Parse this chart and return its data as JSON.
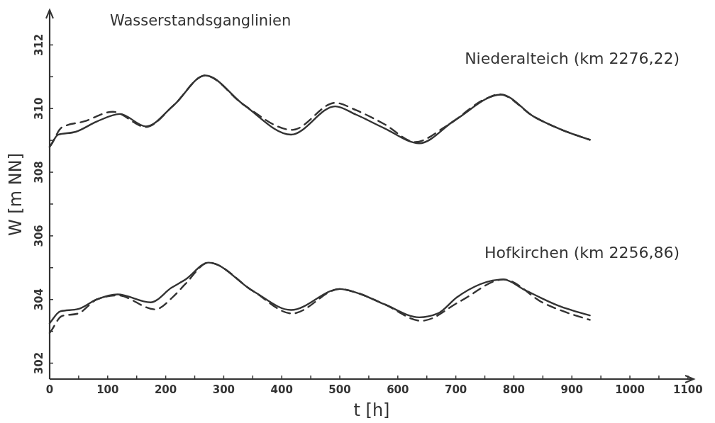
{
  "chart_data": {
    "type": "line",
    "title": "Wasserstandsganglinien",
    "xlabel": "t [h]",
    "ylabel": "W [m NN]",
    "annotations": [
      "Niederalteich (km 2276,22)",
      "Hofkirchen (km 2256,86)"
    ],
    "xlim": [
      0,
      1110
    ],
    "ylim": [
      301.5,
      313.1
    ],
    "xticks": [
      0,
      {
        "value": 50,
        "label": null
      },
      100,
      {
        "value": 150,
        "label": null
      },
      200,
      {
        "value": 250,
        "label": null
      },
      300,
      {
        "value": 350,
        "label": null
      },
      400,
      {
        "value": 450,
        "label": null
      },
      500,
      {
        "value": 550,
        "label": null
      },
      600,
      {
        "value": 650,
        "label": null
      },
      700,
      {
        "value": 750,
        "label": null
      },
      800,
      {
        "value": 850,
        "label": null
      },
      900,
      {
        "value": 950,
        "label": null
      },
      1000,
      {
        "value": 1050,
        "label": null
      },
      1100
    ],
    "yticks": [
      302,
      {
        "value": 303,
        "label": null
      },
      304,
      {
        "value": 305,
        "label": null
      },
      306,
      {
        "value": 307,
        "label": null
      },
      308,
      {
        "value": 309,
        "label": null
      },
      310,
      {
        "value": 311,
        "label": null
      },
      312
    ],
    "marker": "none",
    "series": [
      {
        "color": "#333333",
        "line_style": "solid",
        "x": [
          0,
          2,
          14.5,
          45,
          81,
          121,
          166,
          214,
          268,
          335,
          416,
          492,
          528,
          577,
          637,
          698,
          778,
          835,
          883,
          931
        ],
        "values": [
          308.8,
          308.85,
          309.18,
          309.27,
          309.59,
          309.83,
          309.44,
          310.11,
          311.04,
          310.11,
          309.18,
          310.07,
          309.81,
          309.38,
          308.91,
          309.63,
          310.44,
          309.74,
          309.33,
          309.02
        ]
      },
      {
        "color": "#333333",
        "line_style": "dashed",
        "x": [
          0,
          2,
          21,
          60,
          109,
          166,
          214,
          268,
          335,
          418,
          492,
          528,
          577,
          630,
          683,
          754,
          775,
          835,
          883,
          931
        ],
        "values": [
          308.8,
          308.85,
          309.41,
          309.6,
          309.9,
          309.42,
          310.11,
          311.04,
          310.11,
          309.33,
          310.18,
          309.95,
          309.51,
          308.95,
          309.44,
          310.33,
          310.45,
          309.74,
          309.33,
          309.02
        ]
      },
      {
        "color": "#333333",
        "line_style": "solid",
        "x": [
          0,
          2,
          18.5,
          49,
          81,
          117,
          174,
          210,
          234,
          274,
          351,
          416,
          500,
          528,
          577,
          637,
          669,
          702,
          782,
          819,
          875,
          931
        ],
        "values": [
          303.25,
          303.3,
          303.63,
          303.7,
          304.0,
          304.16,
          303.91,
          304.37,
          304.63,
          305.16,
          304.26,
          303.67,
          304.33,
          304.22,
          303.85,
          303.44,
          303.56,
          304.07,
          304.63,
          304.3,
          303.82,
          303.5
        ]
      },
      {
        "color": "#333333",
        "line_style": "dashed",
        "x": [
          0,
          2,
          21,
          49,
          81,
          117,
          182,
          214,
          234,
          274,
          351,
          418,
          500,
          528,
          577,
          641,
          708,
          782,
          851,
          931
        ],
        "values": [
          302.95,
          303.0,
          303.48,
          303.56,
          304.0,
          304.13,
          303.69,
          304.11,
          304.49,
          305.16,
          304.26,
          303.56,
          304.33,
          304.22,
          303.85,
          303.33,
          303.95,
          304.63,
          303.89,
          303.36
        ]
      }
    ]
  }
}
